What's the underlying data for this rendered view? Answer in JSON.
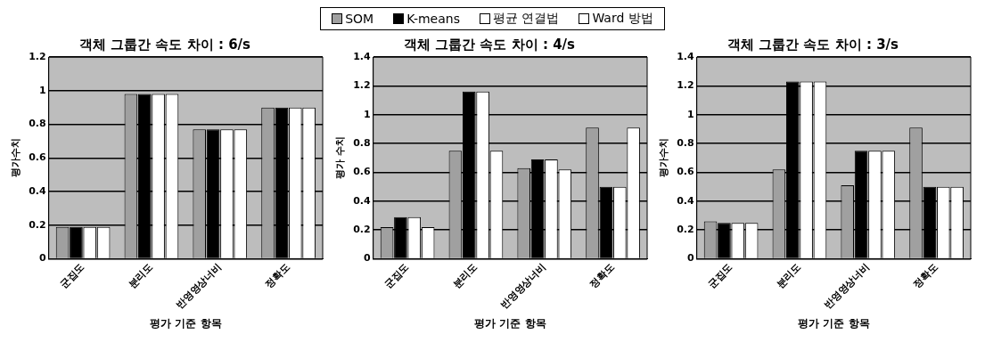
{
  "chart_data": [
    {
      "type": "bar",
      "title": "객체 그룹간 속도 차이 : 6/s",
      "xlabel": "평가 기준 항목",
      "ylabel": "평가수치",
      "categories": [
        "군집도",
        "분리도",
        "반영영상너비",
        "정확도"
      ],
      "legend": "top",
      "grid": "y",
      "ylim": [
        0,
        1.2
      ],
      "yticks": [
        0,
        0.2,
        0.4,
        0.6,
        0.8,
        1,
        1.2
      ],
      "series": [
        {
          "name": "SOM",
          "color": "#a0a0a0",
          "values": [
            0.19,
            0.98,
            0.77,
            0.9
          ]
        },
        {
          "name": "K-means",
          "color": "#000000",
          "values": [
            0.19,
            0.98,
            0.77,
            0.9
          ]
        },
        {
          "name": "평균 연결법",
          "color": "#ffffff",
          "values": [
            0.19,
            0.98,
            0.77,
            0.9
          ]
        },
        {
          "name": "Ward 방법",
          "color": "#ffffff",
          "values": [
            0.19,
            0.98,
            0.77,
            0.9
          ]
        }
      ]
    },
    {
      "type": "bar",
      "title": "객체 그룹간 속도 차이 : 4/s",
      "xlabel": "평가 기준 항목",
      "ylabel": "평가 수치",
      "categories": [
        "군집도",
        "분리도",
        "반영영상너비",
        "정확도"
      ],
      "grid": "y",
      "ylim": [
        0,
        1.4
      ],
      "yticks": [
        0,
        0.2,
        0.4,
        0.6,
        0.8,
        1,
        1.2,
        1.4
      ],
      "series": [
        {
          "color": "#a0a0a0",
          "values": [
            0.22,
            0.75,
            0.63,
            0.91
          ]
        },
        {
          "color": "#000000",
          "values": [
            0.29,
            1.16,
            0.69,
            0.5
          ]
        },
        {
          "color": "#ffffff",
          "values": [
            0.29,
            1.16,
            0.69,
            0.5
          ]
        },
        {
          "color": "#ffffff",
          "values": [
            0.22,
            0.75,
            0.62,
            0.91
          ]
        }
      ]
    },
    {
      "type": "bar",
      "title": "객체 그룹간 속도 차이 : 3/s",
      "xlabel": "평가 기준 항목",
      "ylabel": "평가수치",
      "categories": [
        "군집도",
        "분리도",
        "반영영상너비",
        "정확도"
      ],
      "grid": "y",
      "ylim": [
        0,
        1.4
      ],
      "yticks": [
        0,
        0.2,
        0.4,
        0.6,
        0.8,
        1,
        1.2,
        1.4
      ],
      "series": [
        {
          "color": "#a0a0a0",
          "values": [
            0.26,
            0.62,
            0.51,
            0.91
          ]
        },
        {
          "color": "#000000",
          "values": [
            0.25,
            1.23,
            0.75,
            0.5
          ]
        },
        {
          "color": "#ffffff",
          "values": [
            0.25,
            1.23,
            0.75,
            0.5
          ]
        },
        {
          "color": "#ffffff",
          "values": [
            0.25,
            1.23,
            0.75,
            0.5
          ]
        }
      ]
    }
  ]
}
